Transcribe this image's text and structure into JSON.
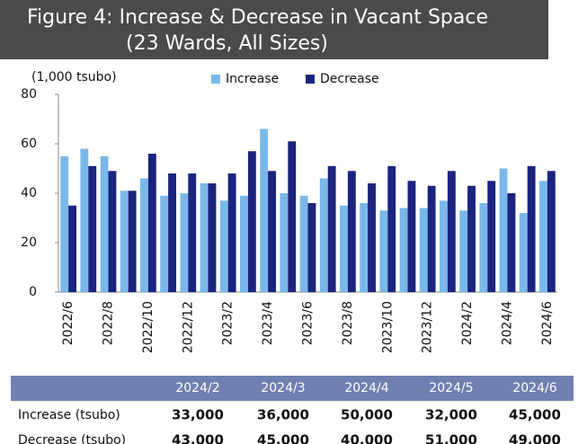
{
  "chart_data": {
    "type": "bar",
    "title": "Figure 4: Increase & Decrease in Vacant Space",
    "subtitle": "(23 Wards, All Sizes)",
    "y_label": "(1,000 tsubo)",
    "categories": [
      "2022/6",
      null,
      "2022/8",
      null,
      "2022/10",
      null,
      "2022/12",
      null,
      "2023/2",
      null,
      "2023/4",
      null,
      "2023/6",
      null,
      "2023/8",
      null,
      "2023/10",
      null,
      "2023/12",
      null,
      "2024/2",
      null,
      "2024/4",
      null,
      "2024/6"
    ],
    "series": [
      {
        "name": "Increase",
        "color": "#7ab8ea",
        "values": [
          55,
          58,
          55,
          41,
          46,
          39,
          40,
          44,
          37,
          39,
          66,
          40,
          39,
          46,
          35,
          36,
          33,
          34,
          34,
          37,
          33,
          36,
          50,
          32,
          45
        ]
      },
      {
        "name": "Decrease",
        "color": "#1b247e",
        "values": [
          35,
          51,
          49,
          41,
          56,
          48,
          48,
          44,
          48,
          57,
          49,
          61,
          36,
          51,
          49,
          44,
          51,
          45,
          43,
          49,
          43,
          45,
          40,
          51,
          49
        ]
      }
    ],
    "ylim": [
      0,
      80
    ],
    "yticks": [
      0,
      20,
      40,
      60,
      80
    ],
    "legend": "top"
  },
  "table": {
    "columns": [
      "2024/2",
      "2024/3",
      "2024/4",
      "2024/5",
      "2024/6"
    ],
    "rows": [
      [
        "Increase (tsubo)",
        "33,000",
        "36,000",
        "50,000",
        "32,000",
        "45,000"
      ],
      [
        "Decrease (tsubo)",
        "43,000",
        "45,000",
        "40,000",
        "51,000",
        "49,000"
      ]
    ]
  }
}
